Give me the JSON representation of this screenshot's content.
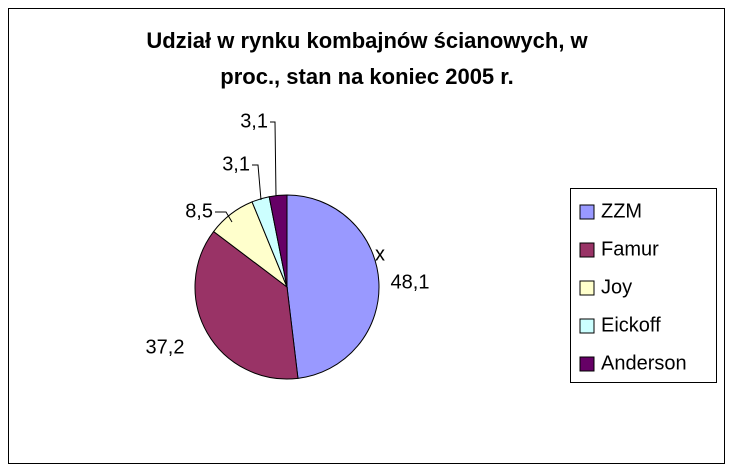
{
  "chart_data": {
    "type": "pie",
    "title": [
      "Udział w rynku kombajnów ścianowych, w",
      "proc., stan na koniec 2005 r."
    ],
    "categories": [
      "ZZM",
      "Famur",
      "Joy",
      "Eickoff",
      "Anderson"
    ],
    "values": [
      48.1,
      37.2,
      8.5,
      3.1,
      3.1
    ],
    "value_labels": [
      "48,1",
      "37,2",
      "8,5",
      "3,1",
      "3,1"
    ],
    "colors": [
      "#9999ff",
      "#993366",
      "#ffffcc",
      "#ccffff",
      "#660066"
    ],
    "annotation": "x",
    "legend": "right"
  }
}
